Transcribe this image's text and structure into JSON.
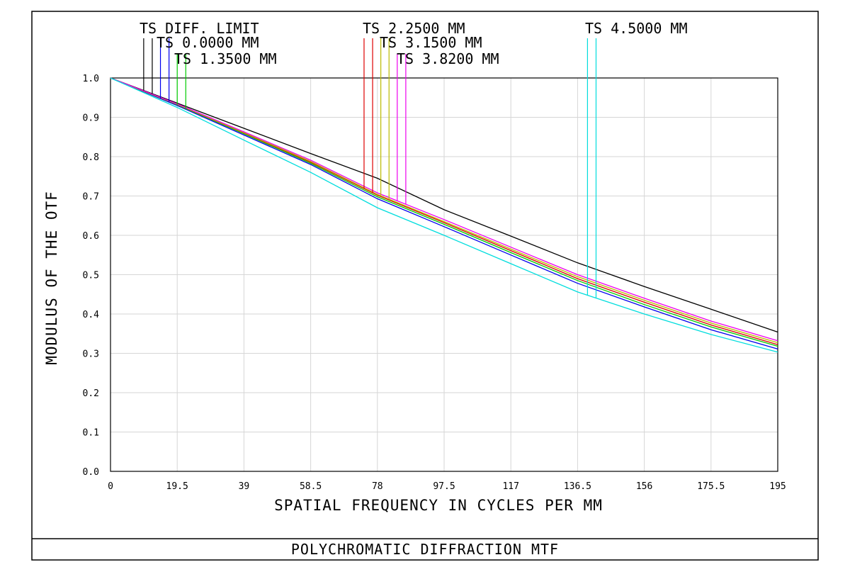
{
  "footer": {
    "title": "POLYCHROMATIC DIFFRACTION MTF"
  },
  "chart_data": {
    "type": "line",
    "xlabel": "SPATIAL FREQUENCY IN CYCLES PER MM",
    "ylabel": "MODULUS OF THE OTF",
    "xlim": [
      0,
      195
    ],
    "ylim": [
      0,
      1.0
    ],
    "x_ticks": [
      0,
      19.5,
      39,
      58.5,
      78,
      97.5,
      117,
      136.5,
      156,
      175.5,
      195
    ],
    "x_tick_labels": [
      "0",
      "19.5",
      "39",
      "58.5",
      "78",
      "97.5",
      "117",
      "136.5",
      "156",
      "175.5",
      "195"
    ],
    "y_ticks": [
      0,
      0.1,
      0.2,
      0.3,
      0.4,
      0.5,
      0.6,
      0.7,
      0.8,
      0.9,
      1.0
    ],
    "y_tick_labels": [
      "0.0",
      "0.1",
      "0.2",
      "0.3",
      "0.4",
      "0.5",
      "0.6",
      "0.7",
      "0.8",
      "0.9",
      "1.0"
    ],
    "grid": true,
    "legend_labels": [
      "TS DIFF. LIMIT",
      "TS 0.0000 MM",
      "TS 1.3500 MM",
      "TS 2.2500 MM",
      "TS 3.1500 MM",
      "TS 3.8200 MM",
      "TS 4.5000 MM"
    ],
    "x": [
      0,
      19.5,
      39,
      58.5,
      78,
      97.5,
      117,
      136.5,
      156,
      175.5,
      195
    ],
    "series": [
      {
        "name": "TS DIFF. LIMIT",
        "color": "#000000",
        "values": [
          1.0,
          0.936,
          0.872,
          0.808,
          0.745,
          0.665,
          0.598,
          0.53,
          0.47,
          0.412,
          0.354
        ]
      },
      {
        "name": "TS 0.0000 MM",
        "color": "#0000ee",
        "values": [
          1.0,
          0.93,
          0.855,
          0.78,
          0.693,
          0.622,
          0.55,
          0.478,
          0.418,
          0.36,
          0.311
        ]
      },
      {
        "name": "TS 1.3500 MM",
        "color": "#00cc00",
        "values": [
          1.0,
          0.932,
          0.858,
          0.783,
          0.698,
          0.628,
          0.556,
          0.485,
          0.424,
          0.367,
          0.318
        ]
      },
      {
        "name": "TS 2.2500 MM",
        "color": "#dd0000",
        "values": [
          1.0,
          0.933,
          0.86,
          0.786,
          0.702,
          0.632,
          0.561,
          0.49,
          0.43,
          0.372,
          0.322
        ]
      },
      {
        "name": "TS 3.1500 MM",
        "color": "#bbbb00",
        "values": [
          1.0,
          0.933,
          0.861,
          0.788,
          0.704,
          0.635,
          0.565,
          0.495,
          0.435,
          0.377,
          0.327
        ]
      },
      {
        "name": "TS 3.8200 MM",
        "color": "#ee00ee",
        "values": [
          1.0,
          0.934,
          0.863,
          0.791,
          0.708,
          0.64,
          0.57,
          0.5,
          0.44,
          0.382,
          0.332
        ]
      },
      {
        "name": "TS 4.5000 MM",
        "color": "#00dddd",
        "values": [
          1.0,
          0.925,
          0.842,
          0.76,
          0.67,
          0.6,
          0.528,
          0.456,
          0.4,
          0.348,
          0.303
        ]
      }
    ],
    "legend_markers": [
      {
        "series": 0,
        "x": [
          9.7,
          12.2
        ]
      },
      {
        "series": 1,
        "x": [
          14.6,
          17.1
        ]
      },
      {
        "series": 2,
        "x": [
          19.5,
          22.0
        ]
      },
      {
        "series": 3,
        "x": [
          74.1,
          76.6
        ]
      },
      {
        "series": 4,
        "x": [
          79.0,
          81.4
        ]
      },
      {
        "series": 5,
        "x": [
          83.8,
          86.3
        ]
      },
      {
        "series": 6,
        "x": [
          139.4,
          141.9
        ]
      }
    ]
  }
}
